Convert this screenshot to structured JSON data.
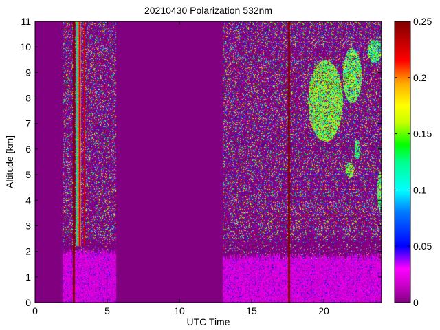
{
  "chart_data": {
    "type": "heatmap",
    "title": "20210430 Polarization 532nm",
    "xlabel": "UTC Time",
    "ylabel": "Altitude [km]",
    "xlim": [
      0,
      24
    ],
    "ylim": [
      0,
      11
    ],
    "x_ticks": [
      0,
      5,
      10,
      15,
      20
    ],
    "x_tick_labels": [
      "0",
      "5",
      "10",
      "15",
      "20"
    ],
    "y_ticks": [
      0,
      1,
      2,
      3,
      4,
      5,
      6,
      7,
      8,
      9,
      10,
      11
    ],
    "y_tick_labels": [
      "0",
      "1",
      "2",
      "3",
      "4",
      "5",
      "6",
      "7",
      "8",
      "9",
      "10",
      "11"
    ],
    "colorbar": {
      "range": [
        0,
        0.25
      ],
      "ticks": [
        0,
        0.05,
        0.1,
        0.15,
        0.2,
        0.25
      ],
      "tick_labels": [
        "0",
        "0.05",
        "0.1",
        "0.15",
        "0.2",
        "0.25"
      ],
      "colormap": "jet-like (purple → blue → cyan → green → yellow → orange → red → dark red)"
    },
    "background_value": 0,
    "measurement_periods_utc": [
      [
        1.9,
        5.6
      ],
      [
        13.0,
        24.0
      ]
    ],
    "noise_region_top_km": 11,
    "boundary_layer": [
      {
        "x_range": [
          1.9,
          5.6
        ],
        "top_km": 2.0,
        "typical_value": 0.02
      },
      {
        "x_range": [
          13.0,
          24.0
        ],
        "top_km": 1.8,
        "typical_value": 0.02
      }
    ],
    "cloud_regions": [
      {
        "x_range": [
          18.9,
          21.3
        ],
        "alt_range": [
          6.3,
          9.5
        ],
        "typical_value": 0.15
      },
      {
        "x_range": [
          21.3,
          22.6
        ],
        "alt_range": [
          7.8,
          10.0
        ],
        "typical_value": 0.14
      },
      {
        "x_range": [
          23.0,
          24.0
        ],
        "alt_range": [
          9.4,
          10.3
        ],
        "typical_value": 0.13
      },
      {
        "x_range": [
          21.5,
          22.1
        ],
        "alt_range": [
          4.9,
          5.5
        ],
        "typical_value": 0.15
      },
      {
        "x_range": [
          22.1,
          22.5
        ],
        "alt_range": [
          5.6,
          6.4
        ],
        "typical_value": 0.13
      },
      {
        "x_range": [
          23.7,
          24.0
        ],
        "alt_range": [
          3.6,
          5.2
        ],
        "typical_value": 0.14
      }
    ],
    "high_value_streaks": [
      {
        "x": 2.65,
        "alt_range": [
          0,
          11
        ],
        "value": 0.25
      },
      {
        "x": 17.55,
        "alt_range": [
          0,
          11
        ],
        "value": 0.25
      },
      {
        "x_range": [
          2.8,
          3.5
        ],
        "alt_range": [
          2.2,
          11
        ],
        "value": 0.18
      }
    ],
    "colors": {
      "background": "#800080",
      "boundary_layer": "#e000e0",
      "plot_frame": "#000000"
    }
  }
}
